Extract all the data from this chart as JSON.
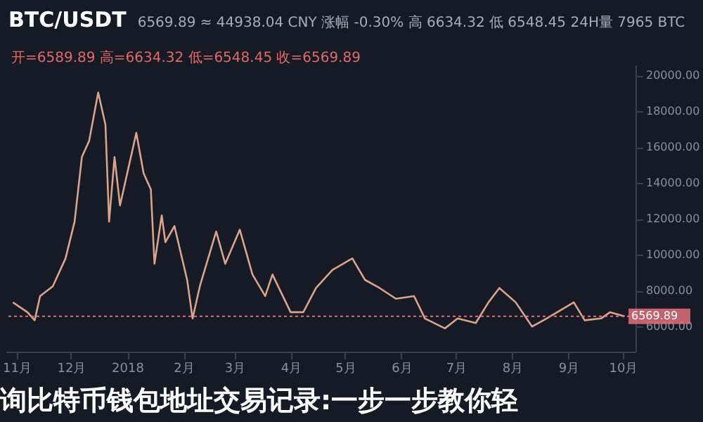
{
  "chart_data": {
    "type": "line",
    "title": "BTC/USDT",
    "subtitle": "6569.89  ≈ 44938.04 CNY  涨幅 -0.30%  高 6634.32  低 6548.45  24H量 7965 BTC",
    "annotations": [
      "开=6589.89 高=6634.32 低=6548.45 收=6569.89",
      "询比特币钱包地址交易记录:一步一步教你轻"
    ],
    "x": [
      "2017-10-30",
      "2017-11-07",
      "2017-11-11",
      "2017-11-14",
      "2017-11-21",
      "2017-11-28",
      "2017-12-03",
      "2017-12-07",
      "2017-12-11",
      "2017-12-16",
      "2017-12-20",
      "2017-12-22",
      "2017-12-25",
      "2017-12-28",
      "2018-01-06",
      "2018-01-10",
      "2018-01-14",
      "2018-01-16",
      "2018-01-20",
      "2018-01-22",
      "2018-01-27",
      "2018-02-03",
      "2018-02-06",
      "2018-02-10",
      "2018-02-19",
      "2018-02-24",
      "2018-03-04",
      "2018-03-11",
      "2018-03-18",
      "2018-03-22",
      "2018-04-01",
      "2018-04-08",
      "2018-04-15",
      "2018-04-24",
      "2018-05-05",
      "2018-05-12",
      "2018-05-20",
      "2018-05-29",
      "2018-06-08",
      "2018-06-14",
      "2018-06-25",
      "2018-07-02",
      "2018-07-12",
      "2018-07-19",
      "2018-07-25",
      "2018-08-03",
      "2018-08-12",
      "2018-08-20",
      "2018-09-04",
      "2018-09-10",
      "2018-09-19",
      "2018-09-24",
      "2018-10-02"
    ],
    "series": [
      {
        "color": "#d9a48c",
        "values": [
          7350,
          6800,
          6350,
          7700,
          8250,
          9800,
          11850,
          15450,
          16350,
          19050,
          17250,
          11850,
          15450,
          12750,
          16800,
          14550,
          13650,
          9500,
          12200,
          10700,
          11600,
          8600,
          6450,
          8250,
          11300,
          9500,
          11400,
          8900,
          7700,
          8900,
          6800,
          6800,
          8150,
          9150,
          9800,
          8600,
          8150,
          7550,
          7700,
          6450,
          5900,
          6450,
          6200,
          7350,
          8150,
          7350,
          6000,
          6450,
          7350,
          6350,
          6450,
          6800,
          6570
        ]
      }
    ],
    "xlim": [
      "2017-10-26",
      "2018-10-08"
    ],
    "xticks": [
      {
        "value": "2017-11-01",
        "label": "11月"
      },
      {
        "value": "2017-12-01",
        "label": "12月"
      },
      {
        "value": "2018-01-01",
        "label": "2018"
      },
      {
        "value": "2018-02-01",
        "label": "2月"
      },
      {
        "value": "2018-03-01",
        "label": "3月"
      },
      {
        "value": "2018-04-01",
        "label": "4月"
      },
      {
        "value": "2018-05-01",
        "label": "5月"
      },
      {
        "value": "2018-06-01",
        "label": "6月"
      },
      {
        "value": "2018-07-01",
        "label": "7月"
      },
      {
        "value": "2018-08-01",
        "label": "8月"
      },
      {
        "value": "2018-09-01",
        "label": "9月"
      },
      {
        "value": "2018-10-01",
        "label": "10月"
      }
    ],
    "ylim": [
      4600,
      20600
    ],
    "yticks": [
      {
        "value": 6000,
        "label": "6000.00"
      },
      {
        "value": 8000,
        "label": "8000.00"
      },
      {
        "value": 10000,
        "label": "10000.00"
      },
      {
        "value": 12000,
        "label": "12000.00"
      },
      {
        "value": 14000,
        "label": "14000.00"
      },
      {
        "value": 16000,
        "label": "16000.00"
      },
      {
        "value": 18000,
        "label": "18000.00"
      },
      {
        "value": 20000,
        "label": "20000.00"
      }
    ],
    "ref_lines": [
      {
        "axis": "y",
        "value": 6569.89,
        "label": "6569.89",
        "color": "#e0707a",
        "line_style": "dotted"
      }
    ]
  }
}
